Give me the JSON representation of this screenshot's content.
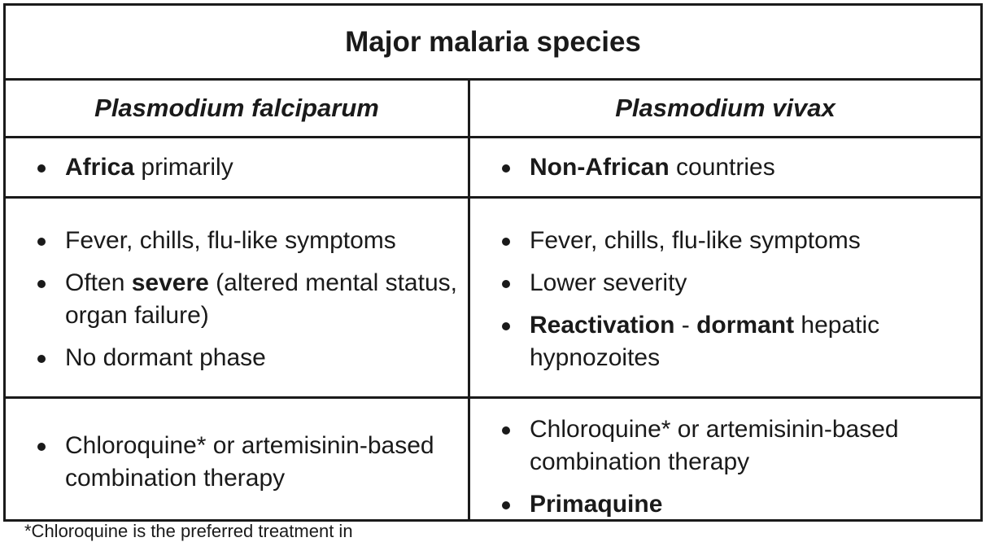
{
  "table": {
    "title": "Major malaria species",
    "columns": [
      "Plasmodium falciparum",
      "Plasmodium vivax"
    ],
    "geography": {
      "falciparum": [
        {
          "parts": [
            {
              "text": "Africa",
              "bold": true
            },
            {
              "text": " primarily",
              "bold": false
            }
          ]
        }
      ],
      "vivax": [
        {
          "parts": [
            {
              "text": "Non-African",
              "bold": true
            },
            {
              "text": " countries",
              "bold": false
            }
          ]
        }
      ]
    },
    "clinical": {
      "falciparum": [
        {
          "parts": [
            {
              "text": "Fever, chills, flu-like symptoms",
              "bold": false
            }
          ]
        },
        {
          "parts": [
            {
              "text": "Often ",
              "bold": false
            },
            {
              "text": "severe",
              "bold": true
            },
            {
              "text": " (altered mental status, organ failure)",
              "bold": false
            }
          ]
        },
        {
          "parts": [
            {
              "text": "No dormant phase",
              "bold": false
            }
          ]
        }
      ],
      "vivax": [
        {
          "parts": [
            {
              "text": "Fever, chills, flu-like symptoms",
              "bold": false
            }
          ]
        },
        {
          "parts": [
            {
              "text": "Lower severity",
              "bold": false
            }
          ]
        },
        {
          "parts": [
            {
              "text": "Reactivation",
              "bold": true
            },
            {
              "text": " - ",
              "bold": false
            },
            {
              "text": "dormant",
              "bold": true
            },
            {
              "text": " hepatic hypnozoites",
              "bold": false
            }
          ]
        }
      ]
    },
    "treatment": {
      "falciparum": [
        {
          "parts": [
            {
              "text": "Chloroquine* or artemisinin-based combination therapy",
              "bold": false
            }
          ]
        }
      ],
      "vivax": [
        {
          "parts": [
            {
              "text": "Chloroquine* or artemisinin-based combination therapy",
              "bold": false
            }
          ]
        },
        {
          "parts": [
            {
              "text": "Primaquine",
              "bold": true
            }
          ]
        }
      ]
    }
  },
  "footnote": "*Chloroquine is the preferred treatment in"
}
